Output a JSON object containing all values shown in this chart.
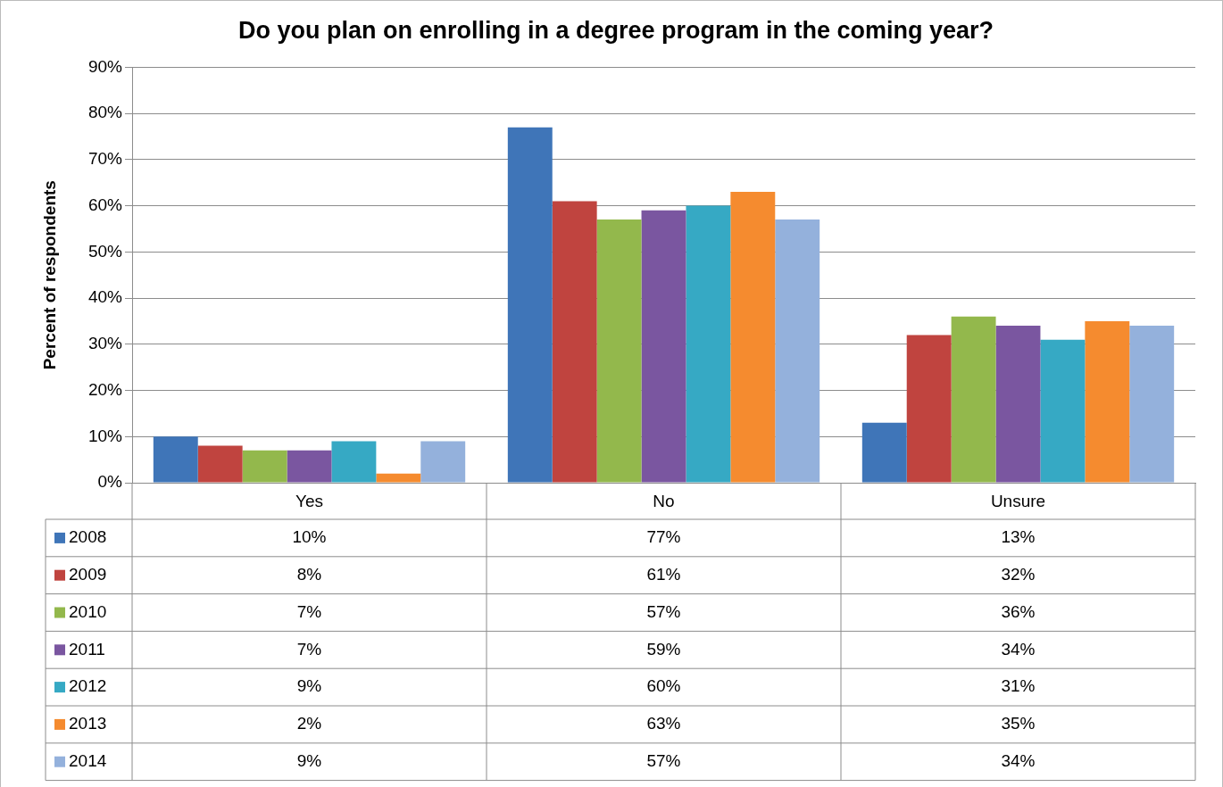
{
  "chart_data": {
    "type": "bar",
    "title": "Do you plan on enrolling in a degree program in the coming year?",
    "ylabel": "Percent of respondents",
    "categories": [
      "Yes",
      "No",
      "Unsure"
    ],
    "series": [
      {
        "name": "2008",
        "color": "#3f75b8",
        "values": [
          10,
          77,
          13
        ],
        "value_labels": [
          "10%",
          "77%",
          "13%"
        ]
      },
      {
        "name": "2009",
        "color": "#c0443f",
        "values": [
          8,
          61,
          32
        ],
        "value_labels": [
          "8%",
          "61%",
          "32%"
        ]
      },
      {
        "name": "2010",
        "color": "#93b84c",
        "values": [
          7,
          57,
          36
        ],
        "value_labels": [
          "7%",
          "57%",
          "36%"
        ]
      },
      {
        "name": "2011",
        "color": "#7a56a0",
        "values": [
          7,
          59,
          34
        ],
        "value_labels": [
          "7%",
          "59%",
          "34%"
        ]
      },
      {
        "name": "2012",
        "color": "#36a9c4",
        "values": [
          9,
          60,
          31
        ],
        "value_labels": [
          "9%",
          "60%",
          "31%"
        ]
      },
      {
        "name": "2013",
        "color": "#f58b2f",
        "values": [
          2,
          63,
          35
        ],
        "value_labels": [
          "2%",
          "63%",
          "35%"
        ]
      },
      {
        "name": "2014",
        "color": "#94b1dc",
        "values": [
          9,
          57,
          34
        ],
        "value_labels": [
          "9%",
          "57%",
          "34%"
        ]
      }
    ],
    "ylim": [
      0,
      90
    ],
    "yticks": [
      {
        "value": 0,
        "label": "0%"
      },
      {
        "value": 10,
        "label": "10%"
      },
      {
        "value": 20,
        "label": "20%"
      },
      {
        "value": 30,
        "label": "30%"
      },
      {
        "value": 40,
        "label": "40%"
      },
      {
        "value": 50,
        "label": "50%"
      },
      {
        "value": 60,
        "label": "60%"
      },
      {
        "value": 70,
        "label": "70%"
      },
      {
        "value": 80,
        "label": "80%"
      },
      {
        "value": 90,
        "label": "90%"
      }
    ],
    "grid": "y",
    "legend": "bottom"
  }
}
